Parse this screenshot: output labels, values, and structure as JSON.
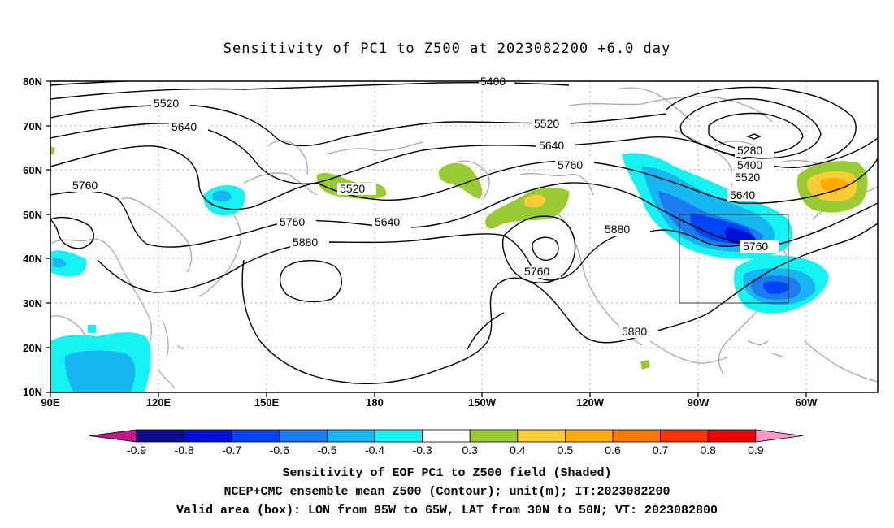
{
  "title": "Sensitivity of PC1 to Z500 at 2023082200 +6.0 day",
  "lat_labels": [
    "80N",
    "70N",
    "60N",
    "50N",
    "40N",
    "30N",
    "20N",
    "10N"
  ],
  "lon_labels": [
    "90E",
    "120E",
    "150E",
    "180",
    "150W",
    "120W",
    "90W",
    "60W"
  ],
  "contour_labels": {
    "c5400_top": "5400",
    "c5520_left": "5520",
    "c5640_left": "5640",
    "c5760_left": "5760",
    "c5520_mid": "5520",
    "c5640_mid": "5640",
    "c5760_mid": "5760",
    "c5520_pac": "5520",
    "c5760_low": "5760",
    "c5640_low": "5640",
    "c5880_left": "5880",
    "c5760_circ": "5760",
    "c5880_right": "5880",
    "c5880_bot": "5880",
    "c5280": "5280",
    "c5400_r": "5400",
    "c5520_r": "5520",
    "c5640_r": "5640",
    "c5760_box": "5760"
  },
  "colorbar": {
    "labels": [
      "-0.9",
      "-0.8",
      "-0.7",
      "-0.6",
      "-0.5",
      "-0.4",
      "-0.3",
      "0.3",
      "0.4",
      "0.5",
      "0.6",
      "0.7",
      "0.8",
      "0.9"
    ],
    "colors": [
      "#0b0b8e",
      "#0010d8",
      "#0044f5",
      "#1a7cf0",
      "#16b6f2",
      "#14f2f2",
      "#ffffff",
      "#99cc33",
      "#ffcc33",
      "#ffaa00",
      "#ff7700",
      "#ff3300",
      "#ee0000"
    ],
    "low_end": "#c01a8a",
    "high_end": "#ff99cc"
  },
  "captions": {
    "line1": "Sensitivity of EOF PC1 to Z500 field (Shaded)",
    "line2": "NCEP+CMC ensemble mean Z500 (Contour); unit(m); IT:2023082200",
    "line3": "Valid area (box): LON from 95W to 65W, LAT from 30N to 50N; VT: 2023082800"
  }
}
